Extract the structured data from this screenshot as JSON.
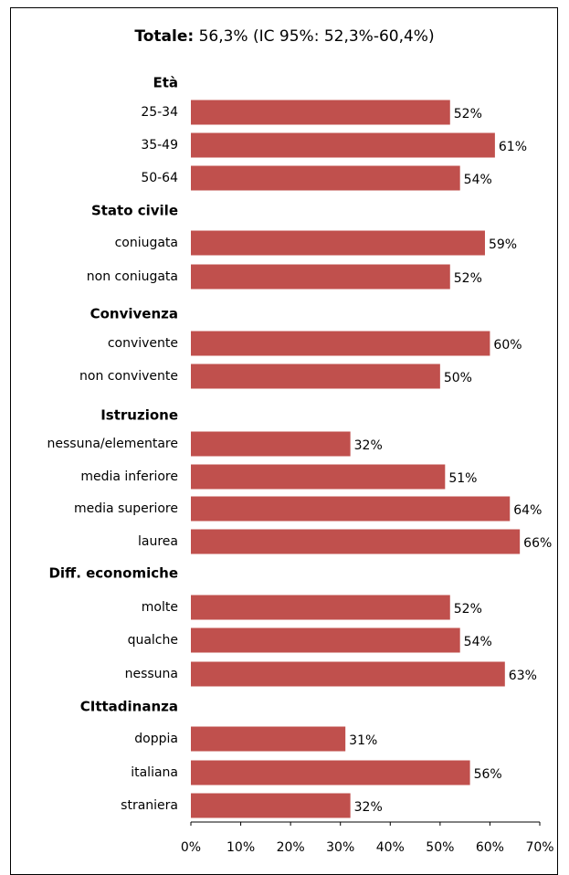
{
  "chart_data": {
    "type": "bar",
    "orientation": "horizontal",
    "title": {
      "bold": "Totale:",
      "rest": " 56,3% (IC 95%: 52,3%-60,4%)"
    },
    "xlim": [
      0,
      70
    ],
    "xticks": [
      "0%",
      "10%",
      "20%",
      "30%",
      "40%",
      "50%",
      "60%",
      "70%"
    ],
    "bar_color": "#C0504D",
    "groups": [
      {
        "name": "Età",
        "items": [
          {
            "label": "25-34",
            "value": 52,
            "value_label": "52%"
          },
          {
            "label": "35-49",
            "value": 61,
            "value_label": "61%"
          },
          {
            "label": "50-64",
            "value": 54,
            "value_label": "54%"
          }
        ]
      },
      {
        "name": "Stato civile",
        "items": [
          {
            "label": "coniugata",
            "value": 59,
            "value_label": "59%"
          },
          {
            "label": "non coniugata",
            "value": 52,
            "value_label": "52%"
          }
        ]
      },
      {
        "name": "Convivenza",
        "items": [
          {
            "label": "convivente",
            "value": 60,
            "value_label": "60%"
          },
          {
            "label": "non convivente",
            "value": 50,
            "value_label": "50%"
          }
        ]
      },
      {
        "name": "Istruzione",
        "items": [
          {
            "label": "nessuna/elementare",
            "value": 32,
            "value_label": "32%"
          },
          {
            "label": "media inferiore",
            "value": 51,
            "value_label": "51%"
          },
          {
            "label": "media superiore",
            "value": 64,
            "value_label": "64%"
          },
          {
            "label": "laurea",
            "value": 66,
            "value_label": "66%"
          }
        ]
      },
      {
        "name": "Diff. economiche",
        "items": [
          {
            "label": "molte",
            "value": 52,
            "value_label": "52%"
          },
          {
            "label": "qualche",
            "value": 54,
            "value_label": "54%"
          },
          {
            "label": "nessuna",
            "value": 63,
            "value_label": "63%"
          }
        ]
      },
      {
        "name": "CIttadinanza",
        "items": [
          {
            "label": "doppia",
            "value": 31,
            "value_label": "31%"
          },
          {
            "label": "italiana",
            "value": 56,
            "value_label": "56%"
          },
          {
            "label": "straniera",
            "value": 32,
            "value_label": "32%"
          }
        ]
      }
    ]
  }
}
